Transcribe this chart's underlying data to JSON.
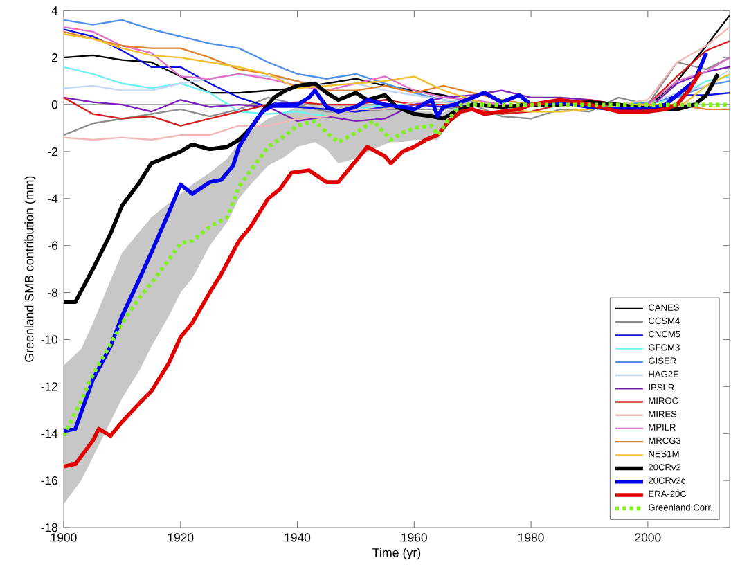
{
  "chart_data": {
    "type": "line",
    "xlabel": "Time (yr)",
    "ylabel": "Greenland SMB contribution (mm)",
    "x": [
      1900,
      1905,
      1910,
      1915,
      1920,
      1925,
      1930,
      1935,
      1940,
      1945,
      1950,
      1955,
      1960,
      1965,
      1970,
      1975,
      1980,
      1985,
      1990,
      1995,
      2000,
      2005,
      2010,
      2014
    ],
    "xlim": [
      1900,
      2014
    ],
    "ylim": [
      -18,
      4
    ],
    "xticks": [
      1900,
      1920,
      1940,
      1960,
      1980,
      2000
    ],
    "yticks": [
      -18,
      -16,
      -14,
      -12,
      -10,
      -8,
      -6,
      -4,
      -2,
      0,
      2,
      4
    ],
    "grid": false,
    "legend": "bottom right",
    "ref_lines": [
      {
        "axis": "y",
        "value": 0,
        "color": "#606060"
      }
    ],
    "series": [
      {
        "name": "CANES",
        "color": "#000000",
        "values": [
          2.0,
          2.1,
          1.9,
          1.8,
          1.2,
          0.5,
          0.5,
          0.6,
          0.7,
          0.9,
          1.1,
          0.8,
          0.6,
          0.4,
          0.1,
          0.0,
          0.0,
          0.0,
          0.0,
          0.0,
          -0.1,
          1.0,
          2.5,
          3.8
        ]
      },
      {
        "name": "CCSM4",
        "color": "#8c8c8c",
        "values": [
          -1.3,
          -0.8,
          -0.6,
          -0.4,
          -0.2,
          -0.5,
          -0.2,
          0.3,
          0.0,
          -0.3,
          -0.3,
          -0.2,
          -0.2,
          -0.2,
          0.0,
          -0.5,
          -0.6,
          -0.2,
          -0.3,
          0.3,
          0.0,
          1.8,
          1.5,
          2.0
        ]
      },
      {
        "name": "CNCM5",
        "color": "#1010e0",
        "values": [
          3.2,
          2.9,
          2.3,
          1.6,
          1.6,
          0.9,
          0.3,
          -0.1,
          -0.1,
          -0.2,
          -0.3,
          -0.1,
          0.0,
          -0.1,
          0.0,
          0.0,
          0.0,
          0.0,
          0.0,
          0.0,
          0.0,
          0.4,
          0.4,
          0.5
        ]
      },
      {
        "name": "GFCM3",
        "color": "#70f0f0",
        "values": [
          1.6,
          1.3,
          0.9,
          0.7,
          0.9,
          0.5,
          -0.3,
          -0.4,
          -0.3,
          -0.5,
          -0.2,
          0.0,
          0.0,
          0.1,
          0.0,
          0.0,
          0.0,
          0.0,
          0.0,
          0.0,
          0.0,
          0.3,
          1.0,
          1.2
        ]
      },
      {
        "name": "GISER",
        "color": "#4f8fe6",
        "values": [
          3.6,
          3.4,
          3.6,
          3.2,
          2.9,
          2.6,
          2.4,
          1.8,
          1.3,
          1.1,
          1.3,
          0.9,
          0.5,
          0.2,
          0.0,
          0.0,
          0.0,
          0.0,
          0.0,
          0.0,
          0.1,
          0.3,
          0.8,
          1.0
        ]
      },
      {
        "name": "HAG2E",
        "color": "#c3d7f5",
        "values": [
          0.7,
          0.8,
          0.6,
          0.6,
          0.9,
          1.1,
          1.3,
          1.2,
          1.0,
          0.8,
          0.9,
          0.6,
          0.4,
          0.2,
          0.1,
          0.0,
          0.0,
          0.0,
          0.0,
          0.0,
          0.0,
          0.5,
          0.8,
          1.5
        ]
      },
      {
        "name": "IPSLR",
        "color": "#7a1fb8",
        "values": [
          0.3,
          0.1,
          0.0,
          -0.3,
          0.2,
          -0.1,
          0.0,
          -0.1,
          -0.7,
          -0.5,
          -0.7,
          -0.6,
          0.0,
          0.3,
          0.4,
          0.6,
          0.3,
          0.3,
          0.2,
          0.0,
          -0.2,
          0.9,
          1.4,
          1.6
        ]
      },
      {
        "name": "MIROC",
        "color": "#d41f1f",
        "values": [
          0.3,
          -0.4,
          -0.6,
          -0.5,
          -0.9,
          -0.6,
          -0.3,
          0.0,
          0.1,
          0.0,
          0.0,
          0.2,
          0.0,
          0.0,
          -0.2,
          -0.4,
          -0.3,
          0.0,
          0.2,
          0.0,
          0.0,
          1.2,
          2.3,
          2.7
        ]
      },
      {
        "name": "MIRES",
        "color": "#f2b8b8",
        "values": [
          -1.4,
          -1.5,
          -1.4,
          -1.5,
          -1.3,
          -1.3,
          -0.9,
          -0.9,
          -0.6,
          -0.5,
          -0.2,
          -0.2,
          0.1,
          0.1,
          0.0,
          0.0,
          0.0,
          0.0,
          0.0,
          0.0,
          0.2,
          1.8,
          2.5,
          3.3
        ]
      },
      {
        "name": "MPILR",
        "color": "#e070c8",
        "values": [
          3.3,
          3.1,
          2.5,
          2.2,
          1.2,
          1.1,
          1.3,
          1.1,
          0.8,
          0.6,
          0.9,
          1.2,
          0.6,
          0.3,
          0.2,
          0.0,
          0.0,
          0.0,
          0.0,
          0.0,
          0.0,
          1.0,
          1.4,
          2.0
        ]
      },
      {
        "name": "MRCG3",
        "color": "#e0822a",
        "values": [
          3.1,
          2.8,
          2.5,
          2.4,
          2.4,
          2.0,
          1.5,
          1.3,
          1.0,
          0.6,
          0.6,
          0.8,
          0.5,
          0.8,
          0.5,
          0.2,
          0.0,
          0.0,
          0.0,
          0.0,
          0.0,
          0.0,
          -0.2,
          -0.2
        ]
      },
      {
        "name": "NES1M",
        "color": "#f0c030",
        "values": [
          3.0,
          2.8,
          2.4,
          2.1,
          2.0,
          1.8,
          1.6,
          1.3,
          0.7,
          0.8,
          0.9,
          1.0,
          1.2,
          0.6,
          0.2,
          -0.2,
          -0.3,
          -0.3,
          -0.2,
          0.0,
          0.0,
          -0.2,
          0.8,
          1.3
        ]
      },
      {
        "name": "20CRv2",
        "color": "#000000",
        "x": [
          1900,
          1902,
          1905,
          1908,
          1910,
          1913,
          1915,
          1920,
          1922,
          1925,
          1928,
          1930,
          1932,
          1934,
          1936,
          1938,
          1940,
          1943,
          1945,
          1947,
          1950,
          1952,
          1955,
          1957,
          1960,
          1963,
          1965,
          1967,
          1970,
          1975,
          1980,
          1985,
          1990,
          1995,
          2000,
          2005,
          2008,
          2010,
          2012
        ],
        "values": [
          -8.4,
          -8.4,
          -7.0,
          -5.5,
          -4.3,
          -3.3,
          -2.5,
          -2.0,
          -1.7,
          -1.9,
          -1.8,
          -1.5,
          -1.0,
          -0.3,
          0.3,
          0.6,
          0.8,
          0.9,
          0.5,
          0.2,
          0.5,
          0.2,
          0.4,
          -0.1,
          -0.4,
          -0.5,
          -0.6,
          -0.3,
          0.0,
          -0.1,
          0.0,
          0.0,
          0.1,
          0.0,
          -0.2,
          -0.2,
          0.0,
          0.4,
          1.3
        ]
      },
      {
        "name": "20CRv2c",
        "color": "#0000ee",
        "x": [
          1900,
          1902,
          1905,
          1908,
          1910,
          1913,
          1915,
          1918,
          1920,
          1922,
          1925,
          1927,
          1929,
          1930,
          1932,
          1934,
          1936,
          1940,
          1942,
          1943,
          1945,
          1947,
          1950,
          1952,
          1955,
          1958,
          1960,
          1963,
          1964,
          1965,
          1967,
          1970,
          1972,
          1975,
          1978,
          1980,
          1985,
          1990,
          1995,
          2000,
          2003,
          2005,
          2008,
          2010
        ],
        "values": [
          -13.9,
          -13.8,
          -11.7,
          -10.3,
          -9.0,
          -7.4,
          -6.3,
          -4.6,
          -3.4,
          -3.8,
          -3.3,
          -3.2,
          -2.6,
          -1.8,
          -1.0,
          -0.3,
          0.0,
          0.0,
          0.3,
          0.6,
          -0.1,
          -0.3,
          -0.1,
          0.2,
          0.0,
          -0.1,
          -0.2,
          0.2,
          -0.5,
          -0.1,
          0.0,
          0.3,
          0.5,
          0.1,
          0.4,
          0.0,
          0.1,
          -0.1,
          -0.2,
          -0.2,
          0.0,
          0.4,
          1.0,
          2.2
        ]
      },
      {
        "name": "ERA-20C",
        "color": "#e00000",
        "x": [
          1900,
          1902,
          1905,
          1906,
          1908,
          1910,
          1913,
          1915,
          1918,
          1920,
          1922,
          1925,
          1927,
          1930,
          1932,
          1935,
          1937,
          1939,
          1942,
          1945,
          1947,
          1950,
          1952,
          1955,
          1956,
          1958,
          1960,
          1962,
          1964,
          1966,
          1968,
          1970,
          1972,
          1975,
          1978,
          1980,
          1985,
          1988,
          1990,
          1995,
          2000,
          2003,
          2005,
          2007,
          2009
        ],
        "values": [
          -15.4,
          -15.3,
          -14.3,
          -13.8,
          -14.1,
          -13.5,
          -12.7,
          -12.2,
          -11.0,
          -9.9,
          -9.3,
          -8.0,
          -7.2,
          -5.8,
          -5.2,
          -4.0,
          -3.6,
          -2.9,
          -2.8,
          -3.3,
          -3.3,
          -2.4,
          -1.8,
          -2.2,
          -2.5,
          -2.0,
          -1.8,
          -1.5,
          -1.3,
          -0.7,
          -0.3,
          -0.2,
          -0.4,
          -0.3,
          -0.2,
          0.0,
          0.2,
          0.1,
          0.0,
          -0.3,
          -0.3,
          -0.2,
          0.0,
          0.6,
          1.4
        ]
      },
      {
        "name": "Greenland Corr.",
        "color": "#80f020",
        "line_style": "dotted",
        "x": [
          1900,
          1903,
          1905,
          1908,
          1910,
          1913,
          1915,
          1918,
          1920,
          1922,
          1925,
          1928,
          1930,
          1932,
          1935,
          1938,
          1940,
          1943,
          1945,
          1947,
          1950,
          1953,
          1956,
          1958,
          1960,
          1963,
          1964,
          1966,
          1968,
          1970,
          1980,
          1990,
          2000,
          2010,
          2014
        ],
        "values": [
          -14.1,
          -12.6,
          -11.5,
          -10.2,
          -9.3,
          -8.2,
          -7.6,
          -6.6,
          -5.9,
          -5.8,
          -5.2,
          -4.8,
          -3.5,
          -2.8,
          -1.8,
          -1.3,
          -0.9,
          -0.7,
          -1.2,
          -1.6,
          -1.2,
          -0.7,
          -1.5,
          -1.2,
          -1.0,
          -0.9,
          -1.3,
          -0.6,
          0.0,
          0.0,
          0.0,
          0.0,
          0.0,
          0.0,
          0.0
        ],
        "upper": [
          -11.1,
          -10.4,
          -9.3,
          -7.5,
          -6.3,
          -5.4,
          -4.8,
          -4.2,
          -3.8,
          -3.4,
          -2.9,
          -2.3,
          -1.6,
          -1.1,
          -0.6,
          -0.3,
          -0.1,
          0.0,
          0.0,
          0.0,
          0.0,
          0.0,
          0.0,
          -0.1,
          -0.3,
          -0.3,
          -0.5,
          -0.2,
          0.0,
          0.0,
          0.0,
          0.0,
          0.0,
          0.0,
          0.0
        ],
        "lower": [
          -17.0,
          -16.0,
          -15.0,
          -13.5,
          -12.5,
          -11.3,
          -10.3,
          -9.0,
          -8.0,
          -7.4,
          -6.0,
          -5.0,
          -4.0,
          -3.4,
          -2.6,
          -2.2,
          -1.8,
          -1.6,
          -1.9,
          -2.5,
          -2.3,
          -1.9,
          -1.6,
          -1.6,
          -1.5,
          -1.5,
          -1.5,
          -0.8,
          -0.1,
          0.0,
          0.0,
          0.0,
          0.0,
          0.0,
          0.0
        ]
      }
    ]
  }
}
